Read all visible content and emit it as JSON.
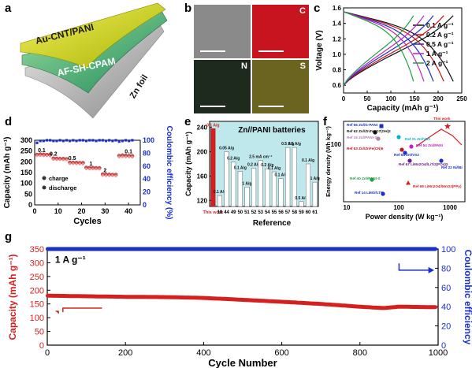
{
  "panel_labels": {
    "a": "a",
    "b": "b",
    "c": "c",
    "d": "d",
    "e": "e",
    "f": "f",
    "g": "g"
  },
  "panel_a": {
    "layer1": "Au-CNT/PANI",
    "layer2": "AF-SH-CPAM",
    "layer3": "Zn foil"
  },
  "panel_b": {
    "maps": [
      {
        "label": "",
        "color": "#8a8a8a"
      },
      {
        "label": "C",
        "color": "#c8141e"
      },
      {
        "label": "N",
        "color": "#1e2a1e"
      },
      {
        "label": "S",
        "color": "#6b6420"
      }
    ]
  },
  "colors": {
    "red": "#d62020",
    "blue": "#1a2ec8",
    "black": "#111111",
    "dark_red": "#9c1010",
    "cyan": "#00b4c8"
  },
  "chart_data": [
    {
      "id": "c",
      "type": "line",
      "xlabel": "Capacity (mAh g⁻¹)",
      "ylabel": "Voltage (V)",
      "xlim": [
        0,
        250
      ],
      "ylim": [
        0.5,
        1.6
      ],
      "xticks": [
        0,
        50,
        100,
        150,
        200,
        250
      ],
      "yticks": [
        0.6,
        0.8,
        1.0,
        1.2,
        1.4,
        1.6
      ],
      "legend_placement": "top-right",
      "series": [
        {
          "name": "0.1 A g⁻¹",
          "color": "#111111",
          "cap": 232
        },
        {
          "name": "0.2 A g⁻¹",
          "color": "#c8141e",
          "cap": 212
        },
        {
          "name": "0.5 A g⁻¹",
          "color": "#1a2ec8",
          "cap": 190
        },
        {
          "name": "1 A g⁻¹",
          "color": "#c020c8",
          "cap": 170
        },
        {
          "name": "2 A g⁻¹",
          "color": "#20a040",
          "cap": 148
        }
      ]
    },
    {
      "id": "d",
      "type": "scatter",
      "xlabel": "Cycles",
      "ylabel": "Capacity (mAh g⁻¹)",
      "y2label": "Coulombic efficiency (%)",
      "xlim": [
        0,
        45
      ],
      "ylim": [
        0,
        300
      ],
      "y2lim": [
        0,
        100
      ],
      "xticks": [
        0,
        10,
        20,
        30,
        40
      ],
      "yticks": [
        0,
        50,
        100,
        150,
        200,
        250,
        300
      ],
      "y2ticks": [
        0,
        20,
        40,
        60,
        80,
        100
      ],
      "rate_labels": [
        {
          "text": "0.1",
          "x": 3,
          "y": 245
        },
        {
          "text": "0.2",
          "x": 8,
          "y": 228
        },
        {
          "text": "0.5",
          "x": 16,
          "y": 208
        },
        {
          "text": "1",
          "x": 24,
          "y": 183
        },
        {
          "text": "2",
          "x": 30,
          "y": 152
        },
        {
          "text": "0.1",
          "x": 40,
          "y": 240
        }
      ],
      "legend": [
        "charge",
        "discharge"
      ],
      "charge": [
        233,
        235,
        234,
        233,
        233,
        216,
        215,
        214,
        214,
        213,
        197,
        196,
        196,
        195,
        195,
        173,
        172,
        172,
        171,
        171,
        142,
        141,
        141,
        140,
        140,
        228,
        230,
        229,
        228,
        227
      ],
      "discharge": [
        232,
        232,
        231,
        231,
        230,
        214,
        213,
        213,
        212,
        212,
        195,
        195,
        194,
        194,
        193,
        171,
        170,
        170,
        170,
        169,
        140,
        139,
        139,
        139,
        138,
        226,
        227,
        226,
        226,
        225
      ],
      "efficiency": [
        96,
        99,
        99,
        100,
        100,
        99,
        99,
        100,
        99,
        100,
        99,
        100,
        99,
        100,
        100,
        99,
        100,
        100,
        99,
        100,
        100,
        99,
        100,
        99,
        100,
        98,
        99,
        100,
        99,
        100
      ]
    },
    {
      "id": "e",
      "type": "bar",
      "title": "Zn//PANI batteries",
      "xlabel": "Reference",
      "ylabel": "Capacity (mAh g⁻¹)",
      "ylim": [
        110,
        250
      ],
      "yticks": [
        120,
        160,
        200,
        240
      ],
      "categories": [
        "This work",
        "18",
        "44",
        "49",
        "50",
        "51",
        "52",
        "53",
        "54",
        "55",
        "56",
        "57",
        "58",
        "59",
        "60",
        "61"
      ],
      "values": [
        238,
        128,
        200,
        183,
        168,
        142,
        173,
        186,
        172,
        167,
        156,
        207,
        207,
        118,
        180,
        150
      ],
      "rates": [
        "0.1 A/g",
        "0.1 A/g",
        "0.05 A/g",
        "0.2 A/g",
        "0.1 A/g",
        "1 A/g",
        "0.2 A/g",
        "2.5 mA cm⁻²",
        "0.2 A/g",
        "0.1 A/g",
        "0.1 A/g",
        "0.5 A/g",
        "0.1 A/g",
        "0.5 A/g",
        "0.1 A/g",
        "1 A/g"
      ]
    },
    {
      "id": "f",
      "type": "scatter",
      "xlabel": "Power density (W kg⁻¹)",
      "ylabel": "Energy density (Wh kg⁻¹)",
      "xscale": "log",
      "yscale": "log",
      "xticks": [
        "10",
        "100",
        "1000"
      ],
      "yticks": [
        "100"
      ],
      "points": [
        {
          "label": "This work",
          "color": "#d62020",
          "marker": "star"
        },
        {
          "label": "Ref 56 Zn//G-PANI",
          "color": "#1a2ec8",
          "marker": "square"
        },
        {
          "label": "Ref 62 Zn//Zn3V2O7(OH)2",
          "color": "#111111",
          "marker": "circle"
        },
        {
          "label": "Ref 15 Zn//PANI-S",
          "color": "#b07fb0",
          "marker": "circle"
        },
        {
          "label": "Ref 21 Zn//VS2",
          "color": "#00b4c8",
          "marker": "circle"
        },
        {
          "label": "Ref 63 Zn//ZnFe(CN)6",
          "color": "#c8141e",
          "marker": "circle"
        },
        {
          "label": "Ref 64 Zn//VS2",
          "color": "#1a2ec8",
          "marker": "circle"
        },
        {
          "label": "Ref 54 Zn//PANI",
          "color": "#c020c8",
          "marker": "circle"
        },
        {
          "label": "Ref 67 LiMn2O4//LiTi2(PO4)3",
          "color": "#6a1a8a",
          "marker": "circle"
        },
        {
          "label": "Ref 22 Ni//Bi",
          "color": "#1a2ec8",
          "marker": "circle"
        },
        {
          "label": "Ref 40 Zn//PANI-S",
          "color": "#20a040",
          "marker": "circle"
        },
        {
          "label": "Ref 68 LiMn2O4//MnO2(PPy)",
          "color": "#d62020",
          "marker": "triangle"
        },
        {
          "label": "Ref 14 LMO//LTP",
          "color": "#1a2ec8",
          "marker": "circle"
        }
      ]
    },
    {
      "id": "g",
      "type": "scatter",
      "xlabel": "Cycle Number",
      "ylabel": "Capacity (mAh g⁻¹)",
      "y2label": "Coulombic efficiency",
      "xlim": [
        0,
        1000
      ],
      "ylim": [
        0,
        350
      ],
      "y2lim": [
        0,
        100
      ],
      "xticks": [
        0,
        200,
        400,
        600,
        800,
        1000
      ],
      "yticks": [
        0,
        50,
        100,
        150,
        200,
        250,
        300,
        350
      ],
      "y2ticks": [
        0,
        20,
        40,
        60,
        80,
        100
      ],
      "annotation": "1 A g⁻¹",
      "capacity_trend": [
        [
          1,
          180
        ],
        [
          100,
          178
        ],
        [
          200,
          176
        ],
        [
          300,
          175
        ],
        [
          400,
          172
        ],
        [
          500,
          165
        ],
        [
          600,
          158
        ],
        [
          700,
          150
        ],
        [
          800,
          140
        ],
        [
          860,
          135
        ],
        [
          900,
          140
        ],
        [
          1000,
          138
        ]
      ],
      "efficiency": 100
    }
  ]
}
